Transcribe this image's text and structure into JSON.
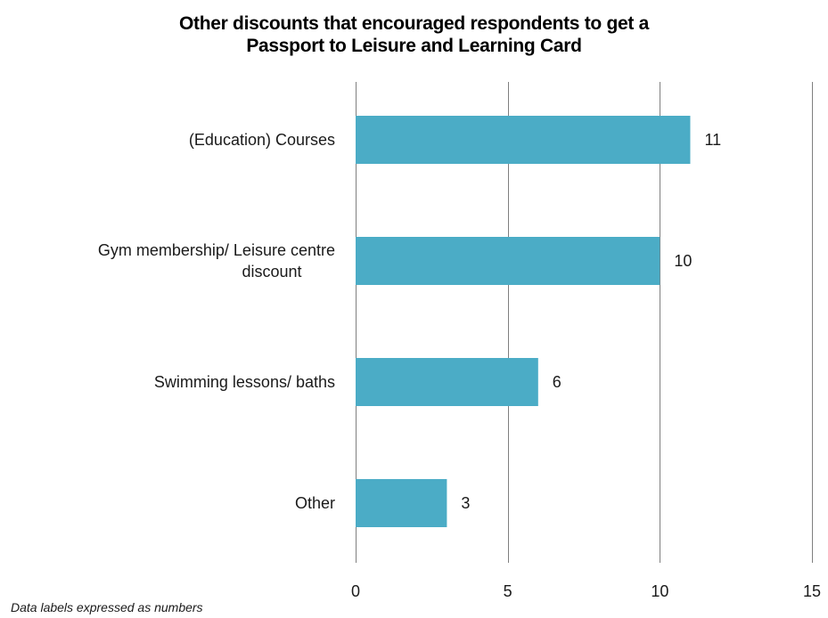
{
  "chart_data": {
    "type": "bar",
    "orientation": "horizontal",
    "title_lines": [
      "Other discounts that encouraged respondents to get a",
      "Passport to Leisure and Learning Card"
    ],
    "categories": [
      [
        "(Education) Courses"
      ],
      [
        "Gym membership/ Leisure centre",
        "discount"
      ],
      [
        "Swimming lessons/ baths"
      ],
      [
        "Other"
      ]
    ],
    "values": [
      11,
      10,
      6,
      3
    ],
    "data_labels": [
      "11",
      "10",
      "6",
      "3"
    ],
    "xlim": [
      0,
      15
    ],
    "xticks": [
      0,
      5,
      10,
      15
    ],
    "xtick_labels": [
      "0",
      "5",
      "10",
      "15"
    ],
    "grid": "vertical",
    "legend": "none",
    "bar_color": "#4bacc6",
    "grid_color": "#7f7f7f",
    "footnote": "Data labels expressed as numbers"
  }
}
